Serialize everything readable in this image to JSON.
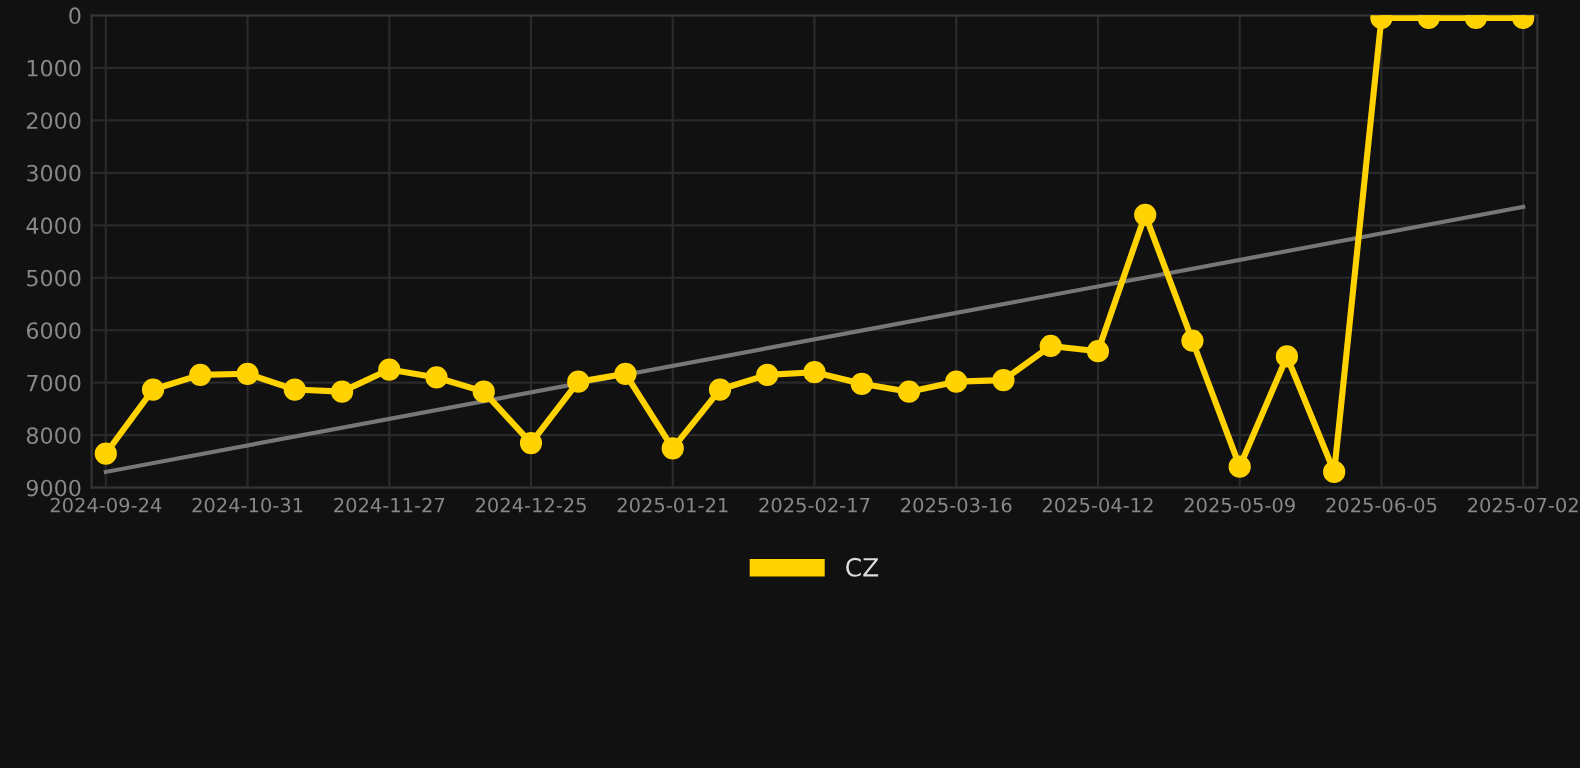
{
  "chart_data": {
    "type": "line",
    "categories": [
      "2024-09-24",
      null,
      null,
      "2024-10-31",
      null,
      null,
      "2024-11-27",
      null,
      null,
      "2024-12-25",
      null,
      null,
      "2025-01-21",
      null,
      null,
      "2025-02-17",
      null,
      null,
      "2025-03-16",
      null,
      null,
      "2025-04-12",
      null,
      null,
      "2025-05-09",
      null,
      null,
      "2025-06-05",
      null,
      null,
      "2025-07-02"
    ],
    "series": [
      {
        "name": "CZ",
        "color": "#ffd200",
        "marker": "circle",
        "values": [
          8350,
          7130,
          6850,
          6830,
          7130,
          7170,
          6750,
          6900,
          7170,
          8150,
          6980,
          6830,
          8250,
          7130,
          6850,
          6800,
          7020,
          7170,
          6980,
          6950,
          6300,
          6400,
          3800,
          6200,
          8600,
          6500,
          8700,
          50,
          50,
          50,
          50
        ]
      },
      {
        "color": "#777777",
        "marker": "none",
        "values": [
          8700,
          null,
          null,
          null,
          null,
          null,
          null,
          null,
          null,
          null,
          null,
          null,
          null,
          null,
          null,
          null,
          null,
          null,
          null,
          null,
          null,
          null,
          null,
          null,
          null,
          null,
          null,
          null,
          null,
          null,
          3650
        ]
      }
    ],
    "ylim": [
      9000,
      0
    ],
    "yticks": [
      0,
      1000,
      2000,
      3000,
      4000,
      5000,
      6000,
      7000,
      8000,
      9000
    ],
    "grid": true,
    "legend": "bottom",
    "line_style": "solid"
  }
}
